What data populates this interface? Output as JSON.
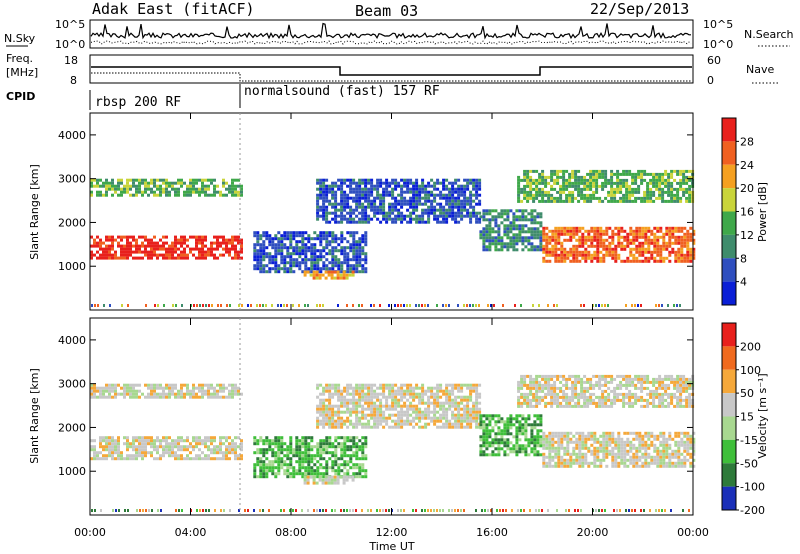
{
  "header": {
    "title": "Adak East (fitACF)",
    "beam": "Beam 03",
    "date": "22/Sep/2013"
  },
  "top_panels": {
    "nsky_label": "N.Sky",
    "nsearch_label": "N.Search",
    "nsky_ticks": [
      "10^5",
      "10^0"
    ],
    "nsearch_ticks": [
      "10^5",
      "10^0"
    ],
    "freq_label_1": "Freq.",
    "freq_label_2": "[MHz]",
    "freq_ticks": [
      "18",
      "8"
    ],
    "nave_label": "Nave",
    "nave_ticks": [
      "60",
      "0"
    ],
    "cpid_label": "CPID",
    "cpid_segments": [
      "rbsp 200 RF",
      "normalsound (fast) 157 RF"
    ]
  },
  "chart_data": [
    {
      "type": "heatmap",
      "name": "power-panel",
      "ylabel": "Slant Range [km]",
      "yticks": [
        "4000",
        "3000",
        "2000",
        "1000"
      ],
      "ylim": [
        0,
        4500
      ],
      "colorbar_label": "Power [dB]",
      "colorbar_ticks": [
        "28",
        "24",
        "20",
        "16",
        "12",
        "8",
        "4"
      ],
      "colors": [
        "#0a1fd6",
        "#2f4fbf",
        "#3f8c6c",
        "#3fa84a",
        "#c9d43a",
        "#f5a020",
        "#f06020",
        "#e8201c"
      ],
      "bands": [
        {
          "x": [
            0.0,
            6.0
          ],
          "y": [
            1200,
            1700
          ],
          "level": 7
        },
        {
          "x": [
            0.0,
            6.0
          ],
          "y": [
            2600,
            3000
          ],
          "level": 3
        },
        {
          "x": [
            6.5,
            11.0
          ],
          "y": [
            900,
            1800
          ],
          "level": 1
        },
        {
          "x": [
            8.5,
            10.5
          ],
          "y": [
            700,
            900
          ],
          "level": 5
        },
        {
          "x": [
            9.0,
            15.5
          ],
          "y": [
            2000,
            3000
          ],
          "level": 1
        },
        {
          "x": [
            15.5,
            18.0
          ],
          "y": [
            1400,
            2300
          ],
          "level": 2
        },
        {
          "x": [
            18.0,
            24.0
          ],
          "y": [
            1100,
            1900
          ],
          "level": 6
        },
        {
          "x": [
            17.0,
            24.0
          ],
          "y": [
            2500,
            3200
          ],
          "level": 3
        }
      ]
    },
    {
      "type": "heatmap",
      "name": "velocity-panel",
      "ylabel": "Slant Range [km]",
      "yticks": [
        "4000",
        "3000",
        "2000",
        "1000"
      ],
      "ylim": [
        0,
        4500
      ],
      "xlabel": "Time UT",
      "xticks": [
        "00:00",
        "04:00",
        "08:00",
        "12:00",
        "16:00",
        "20:00",
        "00:00"
      ],
      "xlim": [
        0,
        24
      ],
      "colorbar_label": "Velocity [m s⁻¹]",
      "colorbar_ticks": [
        "200",
        "100",
        "50",
        "15",
        "-15",
        "-50",
        "-100",
        "-200"
      ],
      "colors": [
        "#1a2fb8",
        "#2e7a3a",
        "#3fbf3a",
        "#a8d890",
        "#c8c8c8",
        "#f5a83a",
        "#f06a1e",
        "#e8201c"
      ],
      "bands": [
        {
          "x": [
            0.0,
            6.0
          ],
          "y": [
            1300,
            1800
          ],
          "level": 4
        },
        {
          "x": [
            0.0,
            6.0
          ],
          "y": [
            2700,
            3000
          ],
          "level": 4
        },
        {
          "x": [
            6.5,
            11.0
          ],
          "y": [
            900,
            1800
          ],
          "level": 2
        },
        {
          "x": [
            8.5,
            10.5
          ],
          "y": [
            700,
            900
          ],
          "level": 4
        },
        {
          "x": [
            9.0,
            15.5
          ],
          "y": [
            2000,
            3000
          ],
          "level": 4
        },
        {
          "x": [
            15.5,
            18.0
          ],
          "y": [
            1400,
            2300
          ],
          "level": 2
        },
        {
          "x": [
            18.0,
            24.0
          ],
          "y": [
            1100,
            1900
          ],
          "level": 4
        },
        {
          "x": [
            17.0,
            24.0
          ],
          "y": [
            2500,
            3200
          ],
          "level": 4
        }
      ]
    }
  ]
}
